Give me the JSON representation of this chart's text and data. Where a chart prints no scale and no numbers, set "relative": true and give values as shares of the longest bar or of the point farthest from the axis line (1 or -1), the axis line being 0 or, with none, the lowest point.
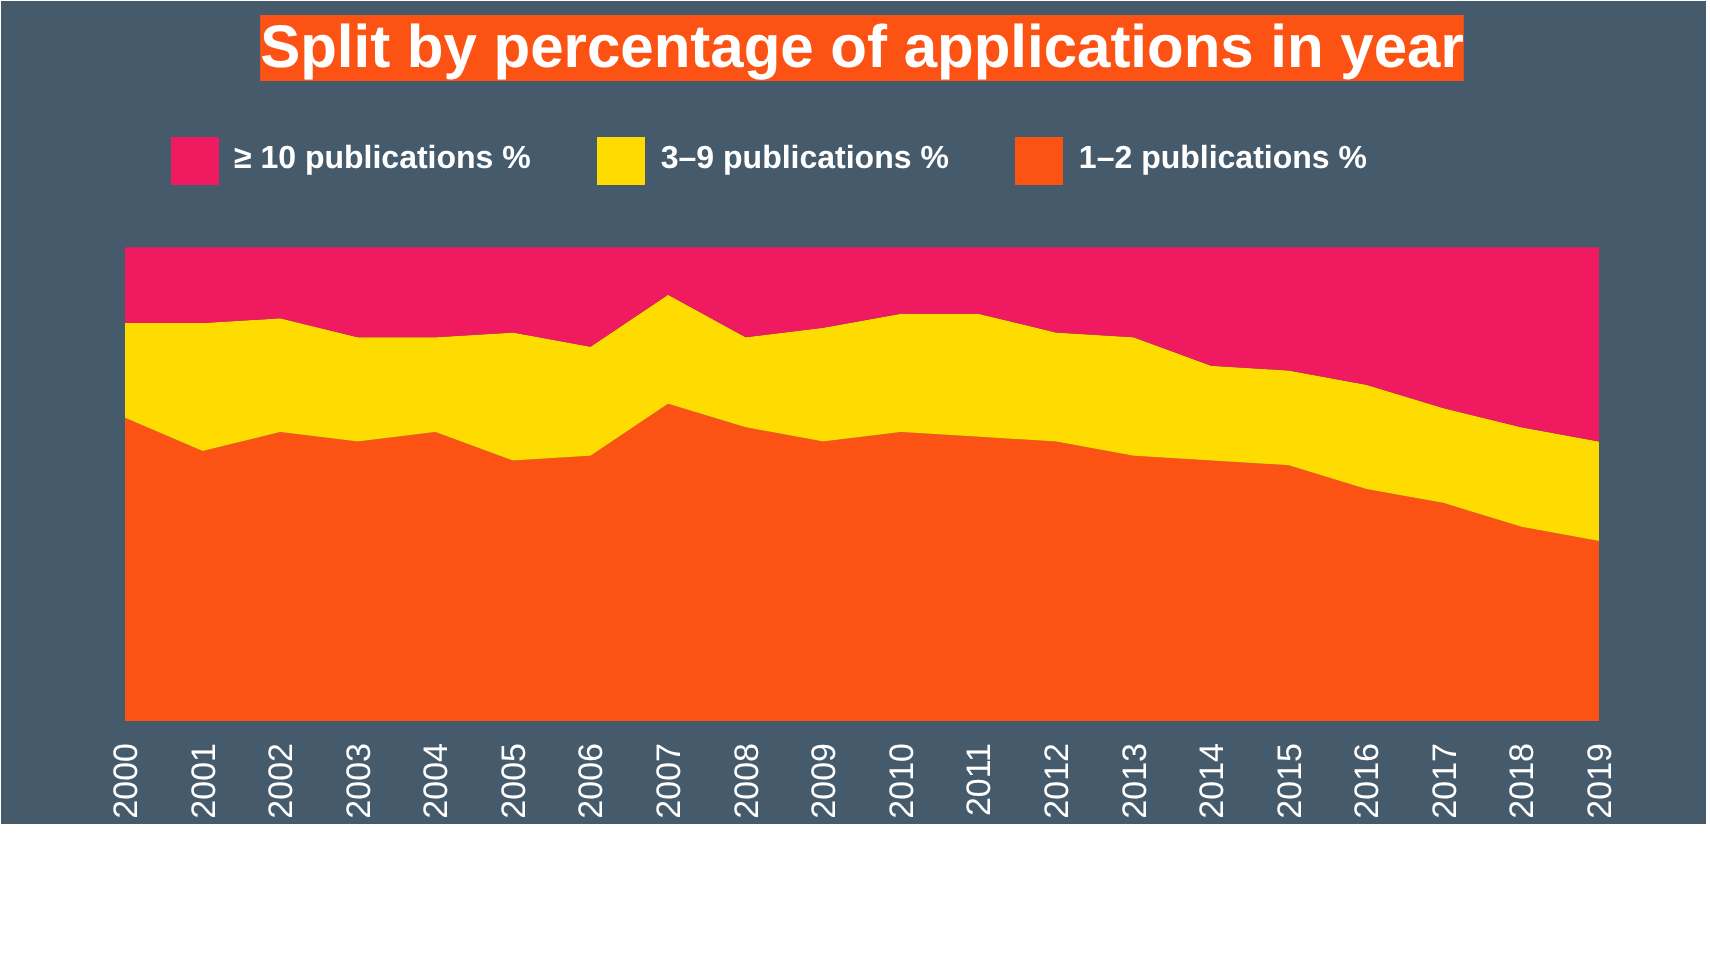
{
  "chart_data": {
    "type": "area",
    "title": "Split by percentage of applications in year",
    "relative": true,
    "stacked": true,
    "legend": "top",
    "grid": false,
    "tick_labels": "x",
    "categories": [
      "2000",
      "2001",
      "2002",
      "2003",
      "2004",
      "2005",
      "2006",
      "2007",
      "2008",
      "2009",
      "2010",
      "2011",
      "2012",
      "2013",
      "2014",
      "2015",
      "2016",
      "2017",
      "2018",
      "2019"
    ],
    "series": [
      {
        "name": "1–2 publications %",
        "color": "#fc5214",
        "values": [
          0.64,
          0.57,
          0.61,
          0.59,
          0.61,
          0.55,
          0.56,
          0.67,
          0.62,
          0.59,
          0.61,
          0.6,
          0.59,
          0.56,
          0.55,
          0.54,
          0.49,
          0.46,
          0.41,
          0.38
        ]
      },
      {
        "name": "3–9 publications %",
        "color": "#ffdc00",
        "values": [
          0.2,
          0.27,
          0.24,
          0.22,
          0.2,
          0.27,
          0.23,
          0.23,
          0.19,
          0.24,
          0.25,
          0.26,
          0.23,
          0.25,
          0.2,
          0.2,
          0.22,
          0.2,
          0.21,
          0.21
        ]
      },
      {
        "name": "≥ 10 publications %",
        "color": "#ef1a5f",
        "values": [
          0.16,
          0.16,
          0.15,
          0.19,
          0.19,
          0.18,
          0.21,
          0.1,
          0.19,
          0.17,
          0.14,
          0.14,
          0.18,
          0.19,
          0.25,
          0.26,
          0.29,
          0.34,
          0.38,
          0.41
        ]
      }
    ]
  }
}
